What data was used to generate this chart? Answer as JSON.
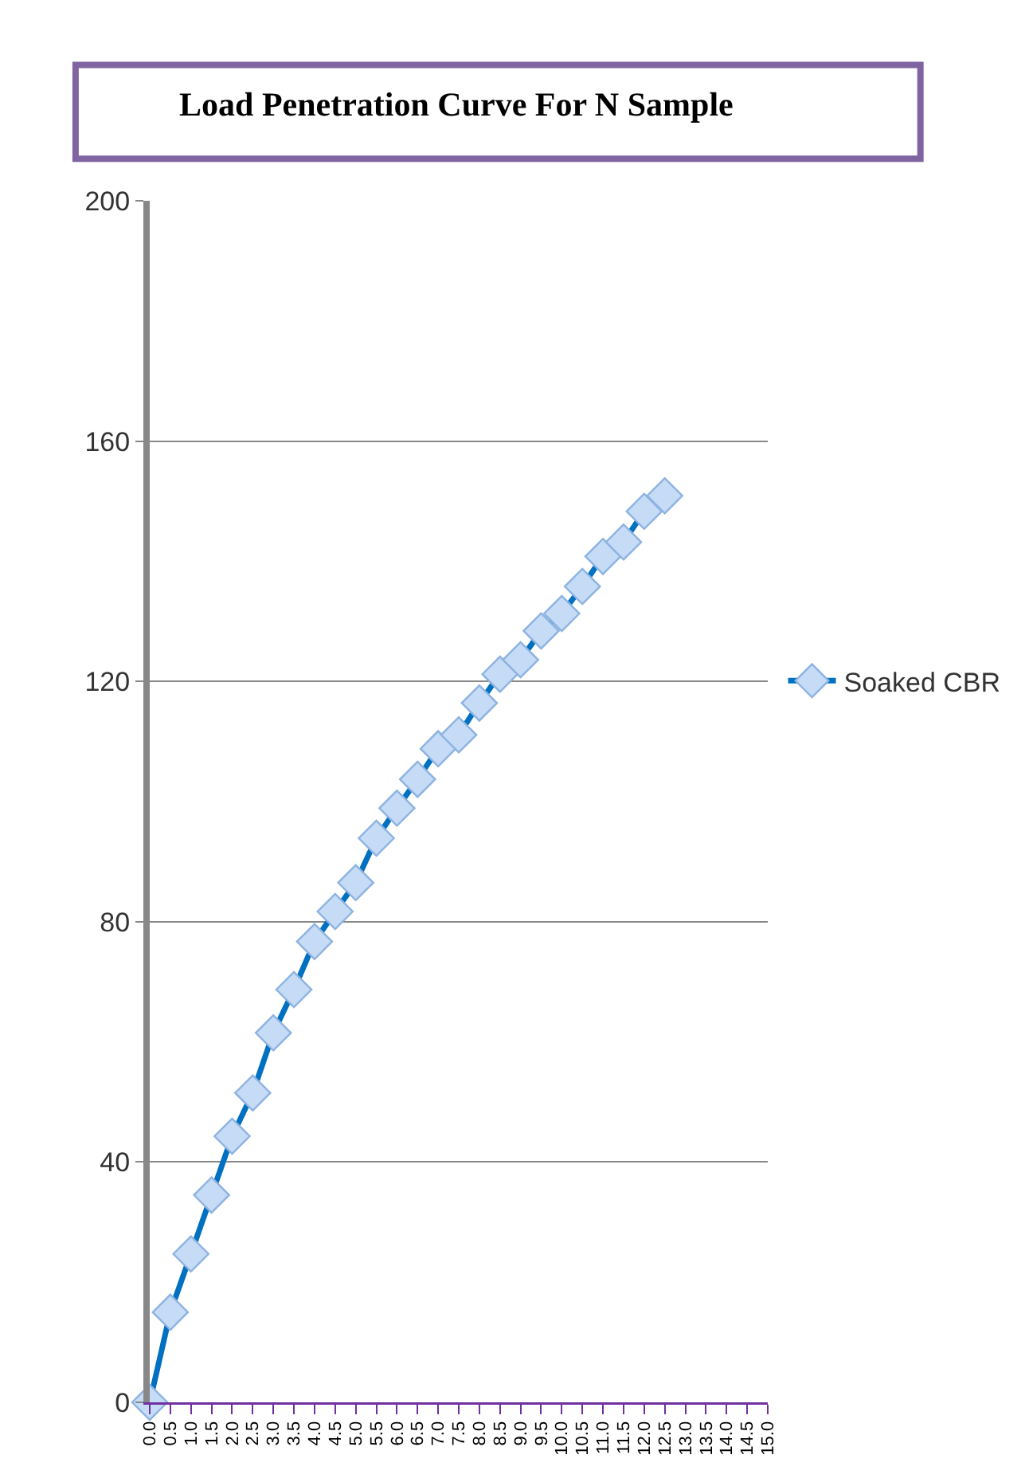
{
  "chart_data": {
    "type": "line",
    "title": "Load Penetration Curve For N Sample",
    "x": [
      0,
      0.5,
      1,
      1.5,
      2,
      2.5,
      3,
      3.5,
      4,
      4.5,
      5,
      5.5,
      6,
      6.5,
      7,
      7.5,
      8,
      8.5,
      9,
      9.5,
      10,
      10.5,
      11,
      11.5,
      12,
      12.5
    ],
    "series": [
      {
        "name": "Soaked CBR",
        "color": "#0070c0",
        "values": [
          0,
          15,
          24.7,
          34.5,
          44.3,
          51.5,
          61.5,
          68.7,
          76.7,
          81.7,
          86.5,
          93.9,
          98.9,
          103.7,
          108.8,
          111.1,
          116.4,
          121.2,
          123.6,
          128.4,
          131.3,
          135.8,
          140.8,
          143.2,
          148.3,
          150.9
        ]
      }
    ],
    "xlim": [
      0,
      15
    ],
    "xticks": [
      {
        "value": 0,
        "label": "0.0"
      },
      {
        "value": 0.5,
        "label": "0.5"
      },
      {
        "value": 1,
        "label": "1.0"
      },
      {
        "value": 1.5,
        "label": "1.5"
      },
      {
        "value": 2,
        "label": "2.0"
      },
      {
        "value": 2.5,
        "label": "2.5"
      },
      {
        "value": 3,
        "label": "3.0"
      },
      {
        "value": 3.5,
        "label": "3.5"
      },
      {
        "value": 4,
        "label": "4.0"
      },
      {
        "value": 4.5,
        "label": "4.5"
      },
      {
        "value": 5,
        "label": "5.0"
      },
      {
        "value": 5.5,
        "label": "5.5"
      },
      {
        "value": 6,
        "label": "6.0"
      },
      {
        "value": 6.5,
        "label": "6.5"
      },
      {
        "value": 7,
        "label": "7.0"
      },
      {
        "value": 7.5,
        "label": "7.5"
      },
      {
        "value": 8,
        "label": "8.0"
      },
      {
        "value": 8.5,
        "label": "8.5"
      },
      {
        "value": 9,
        "label": "9.0"
      },
      {
        "value": 9.5,
        "label": "9.5"
      },
      {
        "value": 10,
        "label": "10.0"
      },
      {
        "value": 10.5,
        "label": "10.5"
      },
      {
        "value": 11,
        "label": "11.0"
      },
      {
        "value": 11.5,
        "label": "11.5"
      },
      {
        "value": 12,
        "label": "12.0"
      },
      {
        "value": 12.5,
        "label": "12.5"
      },
      {
        "value": 13,
        "label": "13.0"
      },
      {
        "value": 13.5,
        "label": "13.5"
      },
      {
        "value": 14,
        "label": "14.0"
      },
      {
        "value": 14.5,
        "label": "14.5"
      },
      {
        "value": 15,
        "label": "15.0"
      }
    ],
    "ylim": [
      0,
      200
    ],
    "yticks": [
      0,
      40,
      80,
      120,
      160,
      200
    ],
    "grid": "y",
    "legend": "right",
    "marker": "diamond",
    "line_style": "solid"
  }
}
